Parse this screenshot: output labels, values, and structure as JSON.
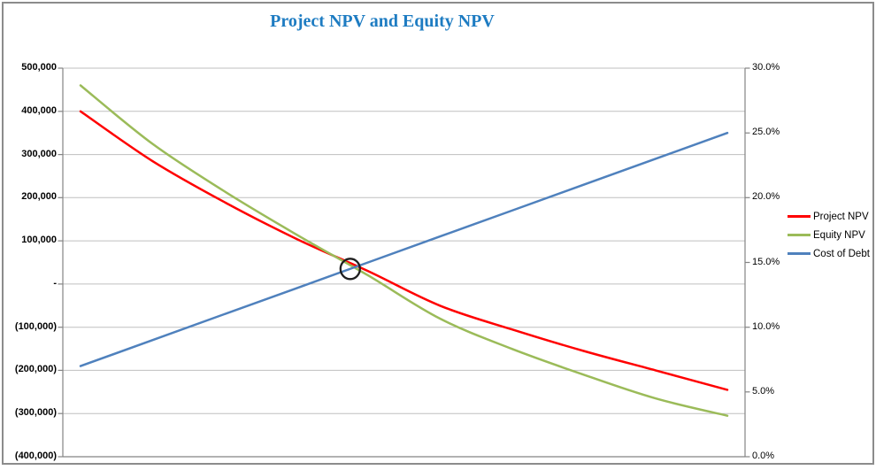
{
  "chart_data": {
    "type": "line",
    "title": "Project NPV and Equity NPV",
    "x_count": 10,
    "x_labels_visible": false,
    "left_axis": {
      "min": -400000,
      "max": 500000,
      "tick_labels": [
        "500,000",
        "400,000",
        "300,000",
        "200,000",
        "100,000",
        "-",
        "(100,000)",
        "(200,000)",
        "(300,000)",
        "(400,000)"
      ]
    },
    "right_axis": {
      "min": 0,
      "max": 30,
      "tick_labels": [
        "30.0%",
        "25.0%",
        "20.0%",
        "15.0%",
        "10.0%",
        "5.0%",
        "0.0%"
      ]
    },
    "series": [
      {
        "name": "Project NPV",
        "axis": "left",
        "color": "#ff0000",
        "smooth": true,
        "values": [
          400000,
          285000,
          190000,
          105000,
          30000,
          -50000,
          -105000,
          -155000,
          -200000,
          -245000
        ]
      },
      {
        "name": "Equity NPV",
        "axis": "left",
        "color": "#9bbb59",
        "smooth": true,
        "values": [
          460000,
          325000,
          215000,
          115000,
          20000,
          -80000,
          -150000,
          -210000,
          -265000,
          -305000
        ]
      },
      {
        "name": "Cost of Debt",
        "axis": "right",
        "color": "#4f81bd",
        "smooth": false,
        "values": [
          7.0,
          9.0,
          11.0,
          13.0,
          15.0,
          17.0,
          19.0,
          21.0,
          23.0,
          25.0
        ]
      }
    ],
    "legend": {
      "position": "right",
      "entries": [
        "Project NPV",
        "Equity NPV",
        "Cost of Debt"
      ]
    },
    "annotation": {
      "shape": "circle",
      "meaning": "highlight of curve intersection point",
      "x_fraction": 0.417,
      "left_value": 35000
    },
    "grid": "horizontal-major"
  },
  "colors": {
    "title": "#1e7cc2",
    "gridline": "#bfbfbf",
    "axis_line": "#848484",
    "frame_border": "#8c8c8c",
    "annotation": "#1f1f1f",
    "text": "#000000"
  }
}
